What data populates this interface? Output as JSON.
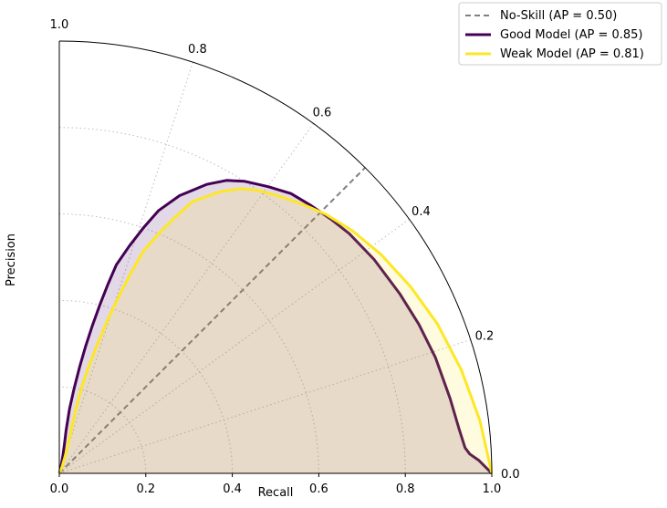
{
  "chart_data": {
    "type": "line",
    "projection": "polar-quarter",
    "xlabel": "Recall",
    "ylabel": "Precision",
    "xlim": [
      0.0,
      1.0
    ],
    "ylim": [
      0.0,
      1.0
    ],
    "x_ticks": [
      "0.0",
      "0.2",
      "0.4",
      "0.6",
      "0.8",
      "1.0"
    ],
    "angular_ticks": [
      {
        "value": 0.0,
        "label": "0.0"
      },
      {
        "value": 0.2,
        "label": "0.2"
      },
      {
        "value": 0.4,
        "label": "0.4"
      },
      {
        "value": 0.6,
        "label": "0.6"
      },
      {
        "value": 0.8,
        "label": "0.8"
      },
      {
        "value": 1.0,
        "label": "1.0"
      }
    ],
    "grid": true,
    "legend_position": "top-right",
    "series": [
      {
        "name": "No-Skill (AP = 0.50)",
        "color": "#808080",
        "style": "dashed",
        "recall": [
          0,
          0.1,
          0.2,
          0.3,
          0.4,
          0.5,
          0.6,
          0.7,
          0.8,
          0.9,
          1.0
        ],
        "precision": [
          0.5,
          0.5,
          0.5,
          0.5,
          0.5,
          0.5,
          0.5,
          0.5,
          0.5,
          0.5,
          0.5
        ]
      },
      {
        "name": "Good Model (AP = 0.85)",
        "color": "#440154",
        "style": "solid",
        "fill": true,
        "recall": [
          0.0,
          0.005,
          0.01,
          0.02,
          0.04,
          0.07,
          0.1,
          0.15,
          0.2,
          0.25,
          0.3,
          0.35,
          0.4,
          0.45,
          0.5,
          0.55,
          0.6,
          0.65,
          0.7,
          0.75,
          0.78,
          0.8,
          0.82,
          0.84,
          0.85,
          0.86,
          0.87,
          0.88,
          0.89,
          0.9,
          0.91,
          0.92,
          0.93,
          0.94,
          0.95,
          0.97,
          1.0
        ],
        "precision": [
          0.76,
          0.8,
          0.82,
          0.85,
          0.87,
          0.89,
          0.9,
          0.9,
          0.89,
          0.88,
          0.87,
          0.86,
          0.85,
          0.84,
          0.83,
          0.81,
          0.79,
          0.77,
          0.74,
          0.7,
          0.67,
          0.64,
          0.6,
          0.56,
          0.52,
          0.48,
          0.44,
          0.38,
          0.31,
          0.25,
          0.19,
          0.12,
          0.07,
          0.04,
          0.03,
          0.02,
          0.0
        ]
      },
      {
        "name": "Weak Model (AP = 0.81)",
        "color": "#fde725",
        "style": "solid",
        "fill": true,
        "recall": [
          0.0,
          0.01,
          0.02,
          0.04,
          0.07,
          0.1,
          0.15,
          0.2,
          0.25,
          0.3,
          0.35,
          0.4,
          0.45,
          0.5,
          0.55,
          0.6,
          0.65,
          0.7,
          0.75,
          0.78,
          0.8,
          0.82,
          0.84,
          0.86,
          0.88,
          0.9,
          0.92,
          0.94,
          0.96,
          0.98,
          1.0
        ],
        "precision": [
          0.5,
          0.72,
          0.76,
          0.79,
          0.81,
          0.83,
          0.84,
          0.84,
          0.83,
          0.82,
          0.81,
          0.8,
          0.79,
          0.78,
          0.77,
          0.75,
          0.73,
          0.71,
          0.67,
          0.64,
          0.61,
          0.57,
          0.53,
          0.49,
          0.44,
          0.38,
          0.31,
          0.24,
          0.16,
          0.08,
          0.0
        ]
      }
    ]
  }
}
